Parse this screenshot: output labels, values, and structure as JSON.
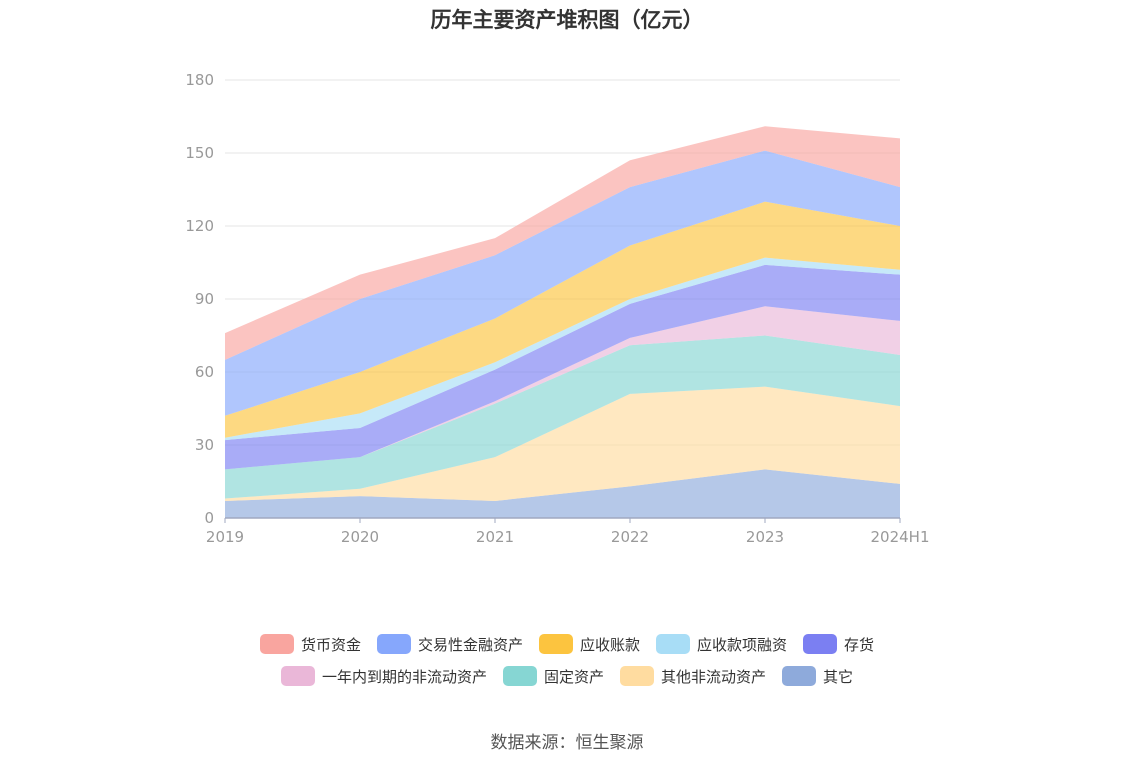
{
  "chart_data": {
    "type": "area",
    "stacked": true,
    "title": "历年主要资产堆积图（亿元）",
    "categories": [
      "2019",
      "2020",
      "2021",
      "2022",
      "2023",
      "2024H1"
    ],
    "y_ticks": [
      0,
      30,
      60,
      90,
      120,
      150,
      180
    ],
    "ylim": [
      0,
      180
    ],
    "grid": true,
    "legend_position": "bottom",
    "series": [
      {
        "name": "其它",
        "color": "#8eaadb",
        "values": [
          7,
          9,
          7,
          13,
          20,
          14
        ]
      },
      {
        "name": "其他非流动资产",
        "color": "#ffdca0",
        "values": [
          1,
          3,
          18,
          38,
          34,
          32
        ]
      },
      {
        "name": "固定资产",
        "color": "#86d6d3",
        "values": [
          12,
          13,
          22,
          20,
          21,
          21
        ]
      },
      {
        "name": "一年内到期的非流动资产",
        "color": "#eab7d8",
        "values": [
          0,
          0,
          1,
          3,
          12,
          14
        ]
      },
      {
        "name": "存货",
        "color": "#7b7ff2",
        "values": [
          12,
          12,
          13,
          14,
          17,
          19
        ]
      },
      {
        "name": "应收款项融资",
        "color": "#a8ddf6",
        "values": [
          1,
          6,
          3,
          2,
          3,
          2
        ]
      },
      {
        "name": "应收账款",
        "color": "#fcc43f",
        "values": [
          9,
          17,
          18,
          22,
          23,
          18
        ]
      },
      {
        "name": "交易性金融资产",
        "color": "#86a7fc",
        "values": [
          23,
          30,
          26,
          24,
          21,
          16
        ]
      },
      {
        "name": "货币资金",
        "color": "#f9a59f",
        "values": [
          11,
          10,
          7,
          11,
          10,
          20
        ]
      }
    ]
  },
  "legend": {
    "rows": [
      [
        {
          "label": "货币资金",
          "color": "#f9a59f"
        },
        {
          "label": "交易性金融资产",
          "color": "#86a7fc"
        },
        {
          "label": "应收账款",
          "color": "#fcc43f"
        },
        {
          "label": "应收款项融资",
          "color": "#a8ddf6"
        },
        {
          "label": "存货",
          "color": "#7b7ff2"
        }
      ],
      [
        {
          "label": "一年内到期的非流动资产",
          "color": "#eab7d8"
        },
        {
          "label": "固定资产",
          "color": "#86d6d3"
        },
        {
          "label": "其他非流动资产",
          "color": "#ffdca0"
        },
        {
          "label": "其它",
          "color": "#8eaadb"
        }
      ]
    ]
  },
  "source": "数据来源：恒生聚源"
}
